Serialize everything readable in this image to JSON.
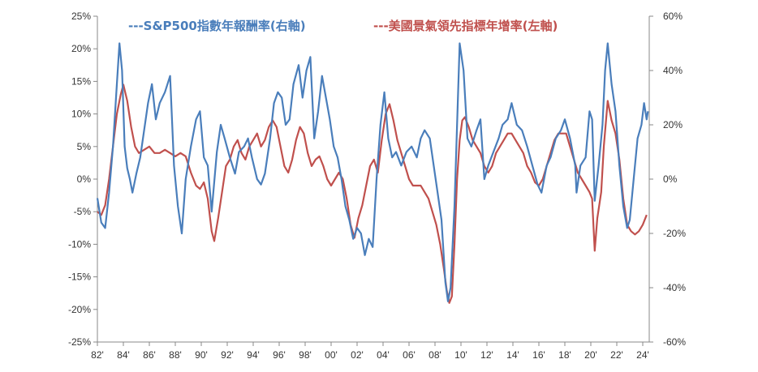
{
  "chart_data": {
    "type": "line",
    "title": "",
    "grid": false,
    "legend_position": "top",
    "x_tick_labels": [
      "82'",
      "84'",
      "86'",
      "88'",
      "90'",
      "92'",
      "94'",
      "96'",
      "98'",
      "00'",
      "02'",
      "04'",
      "06'",
      "08'",
      "10'",
      "12'",
      "14'",
      "16'",
      "18'",
      "20'",
      "22'",
      "24'"
    ],
    "x_tick_years": [
      1982,
      1984,
      1986,
      1988,
      1990,
      1992,
      1994,
      1996,
      1998,
      2000,
      2002,
      2004,
      2006,
      2008,
      2010,
      2012,
      2014,
      2016,
      2018,
      2020,
      2022,
      2024
    ],
    "xlim": [
      1982,
      2024.5
    ],
    "y_left": {
      "ylim": [
        -25,
        25
      ],
      "ticks": [
        "25%",
        "20%",
        "15%",
        "10%",
        "5%",
        "0%",
        "-5%",
        "-10%",
        "-15%",
        "-20%",
        "-25%"
      ],
      "tick_values": [
        25,
        20,
        15,
        10,
        5,
        0,
        -5,
        -10,
        -15,
        -20,
        -25
      ]
    },
    "y_right": {
      "ylim": [
        -60,
        60
      ],
      "ticks": [
        "60%",
        "40%",
        "20%",
        "0%",
        "-20%",
        "-40%",
        "-60%"
      ],
      "tick_values": [
        60,
        40,
        20,
        0,
        -20,
        -40,
        -60
      ]
    },
    "series": [
      {
        "name": "---S&P500指數年報酬率(右軸)",
        "color": "#4a7ebb",
        "axis": "right",
        "points": [
          [
            1982.0,
            -7
          ],
          [
            1982.3,
            -16
          ],
          [
            1982.6,
            -18
          ],
          [
            1982.9,
            -5
          ],
          [
            1983.2,
            12
          ],
          [
            1983.5,
            35
          ],
          [
            1983.7,
            50
          ],
          [
            1983.9,
            40
          ],
          [
            1984.1,
            12
          ],
          [
            1984.3,
            4
          ],
          [
            1984.5,
            0
          ],
          [
            1984.7,
            -5
          ],
          [
            1985.0,
            2
          ],
          [
            1985.3,
            8
          ],
          [
            1985.6,
            18
          ],
          [
            1985.9,
            28
          ],
          [
            1986.2,
            35
          ],
          [
            1986.5,
            22
          ],
          [
            1986.8,
            28
          ],
          [
            1987.2,
            32
          ],
          [
            1987.6,
            38
          ],
          [
            1987.9,
            5
          ],
          [
            1988.2,
            -10
          ],
          [
            1988.5,
            -20
          ],
          [
            1988.8,
            0
          ],
          [
            1989.2,
            12
          ],
          [
            1989.6,
            22
          ],
          [
            1989.9,
            25
          ],
          [
            1990.2,
            8
          ],
          [
            1990.5,
            5
          ],
          [
            1990.8,
            -12
          ],
          [
            1991.2,
            10
          ],
          [
            1991.5,
            20
          ],
          [
            1991.8,
            15
          ],
          [
            1992.2,
            8
          ],
          [
            1992.6,
            2
          ],
          [
            1992.9,
            10
          ],
          [
            1993.3,
            12
          ],
          [
            1993.6,
            15
          ],
          [
            1993.9,
            8
          ],
          [
            1994.3,
            0
          ],
          [
            1994.6,
            -2
          ],
          [
            1994.9,
            2
          ],
          [
            1995.3,
            15
          ],
          [
            1995.6,
            28
          ],
          [
            1995.9,
            32
          ],
          [
            1996.2,
            30
          ],
          [
            1996.5,
            20
          ],
          [
            1996.8,
            22
          ],
          [
            1997.1,
            35
          ],
          [
            1997.5,
            42
          ],
          [
            1997.8,
            30
          ],
          [
            1998.1,
            40
          ],
          [
            1998.4,
            45
          ],
          [
            1998.7,
            15
          ],
          [
            1999.0,
            25
          ],
          [
            1999.3,
            38
          ],
          [
            1999.6,
            30
          ],
          [
            1999.9,
            22
          ],
          [
            2000.2,
            12
          ],
          [
            2000.5,
            8
          ],
          [
            2000.8,
            0
          ],
          [
            2001.1,
            -10
          ],
          [
            2001.4,
            -15
          ],
          [
            2001.7,
            -22
          ],
          [
            2002.0,
            -18
          ],
          [
            2002.3,
            -20
          ],
          [
            2002.6,
            -28
          ],
          [
            2002.9,
            -22
          ],
          [
            2003.2,
            -25
          ],
          [
            2003.5,
            0
          ],
          [
            2003.8,
            20
          ],
          [
            2004.1,
            32
          ],
          [
            2004.4,
            15
          ],
          [
            2004.7,
            8
          ],
          [
            2005.0,
            10
          ],
          [
            2005.4,
            5
          ],
          [
            2005.8,
            10
          ],
          [
            2006.2,
            12
          ],
          [
            2006.6,
            8
          ],
          [
            2006.9,
            15
          ],
          [
            2007.2,
            18
          ],
          [
            2007.6,
            15
          ],
          [
            2007.9,
            5
          ],
          [
            2008.2,
            -5
          ],
          [
            2008.5,
            -15
          ],
          [
            2008.8,
            -38
          ],
          [
            2009.0,
            -45
          ],
          [
            2009.2,
            -40
          ],
          [
            2009.5,
            -10
          ],
          [
            2009.7,
            20
          ],
          [
            2009.9,
            50
          ],
          [
            2010.2,
            40
          ],
          [
            2010.5,
            15
          ],
          [
            2010.8,
            12
          ],
          [
            2011.2,
            18
          ],
          [
            2011.5,
            22
          ],
          [
            2011.8,
            0
          ],
          [
            2012.1,
            5
          ],
          [
            2012.5,
            10
          ],
          [
            2012.9,
            15
          ],
          [
            2013.2,
            20
          ],
          [
            2013.6,
            22
          ],
          [
            2013.9,
            28
          ],
          [
            2014.3,
            20
          ],
          [
            2014.7,
            18
          ],
          [
            2015.1,
            12
          ],
          [
            2015.5,
            5
          ],
          [
            2015.9,
            -2
          ],
          [
            2016.2,
            -5
          ],
          [
            2016.6,
            5
          ],
          [
            2016.9,
            8
          ],
          [
            2017.3,
            15
          ],
          [
            2017.7,
            18
          ],
          [
            2018.0,
            22
          ],
          [
            2018.4,
            15
          ],
          [
            2018.8,
            5
          ],
          [
            2018.9,
            -5
          ],
          [
            2019.2,
            5
          ],
          [
            2019.6,
            8
          ],
          [
            2019.9,
            25
          ],
          [
            2020.1,
            22
          ],
          [
            2020.3,
            -8
          ],
          [
            2020.6,
            5
          ],
          [
            2020.9,
            20
          ],
          [
            2021.1,
            40
          ],
          [
            2021.3,
            50
          ],
          [
            2021.6,
            35
          ],
          [
            2021.9,
            25
          ],
          [
            2022.2,
            5
          ],
          [
            2022.5,
            -10
          ],
          [
            2022.8,
            -18
          ],
          [
            2023.0,
            -15
          ],
          [
            2023.3,
            0
          ],
          [
            2023.6,
            15
          ],
          [
            2023.9,
            20
          ],
          [
            2024.1,
            28
          ],
          [
            2024.3,
            22
          ],
          [
            2024.4,
            25
          ]
        ]
      },
      {
        "name": "---美國景氣領先指標年增率(左軸)",
        "color": "#c0504d",
        "axis": "left",
        "points": [
          [
            1982.0,
            -5
          ],
          [
            1982.3,
            -5.5
          ],
          [
            1982.6,
            -4
          ],
          [
            1982.9,
            0
          ],
          [
            1983.2,
            5
          ],
          [
            1983.5,
            10
          ],
          [
            1983.8,
            13
          ],
          [
            1984.0,
            14.5
          ],
          [
            1984.3,
            12
          ],
          [
            1984.6,
            8
          ],
          [
            1984.9,
            5
          ],
          [
            1985.2,
            4
          ],
          [
            1985.6,
            4.5
          ],
          [
            1986.0,
            5
          ],
          [
            1986.4,
            4
          ],
          [
            1986.8,
            4
          ],
          [
            1987.2,
            4.5
          ],
          [
            1987.6,
            4
          ],
          [
            1988.0,
            3.5
          ],
          [
            1988.4,
            4
          ],
          [
            1988.8,
            3.5
          ],
          [
            1989.2,
            1
          ],
          [
            1989.6,
            -1
          ],
          [
            1989.9,
            -1.5
          ],
          [
            1990.2,
            -0.5
          ],
          [
            1990.5,
            -3
          ],
          [
            1990.8,
            -8
          ],
          [
            1991.0,
            -9.5
          ],
          [
            1991.3,
            -6
          ],
          [
            1991.6,
            -2
          ],
          [
            1991.9,
            2
          ],
          [
            1992.2,
            3
          ],
          [
            1992.5,
            5
          ],
          [
            1992.8,
            6
          ],
          [
            1993.1,
            4
          ],
          [
            1993.4,
            3
          ],
          [
            1993.7,
            5
          ],
          [
            1994.0,
            6
          ],
          [
            1994.3,
            7
          ],
          [
            1994.6,
            5
          ],
          [
            1994.9,
            6
          ],
          [
            1995.2,
            8
          ],
          [
            1995.5,
            9
          ],
          [
            1995.8,
            8
          ],
          [
            1996.1,
            5
          ],
          [
            1996.4,
            2
          ],
          [
            1996.7,
            1
          ],
          [
            1997.0,
            3
          ],
          [
            1997.3,
            6
          ],
          [
            1997.6,
            8
          ],
          [
            1997.9,
            7
          ],
          [
            1998.2,
            4
          ],
          [
            1998.5,
            2
          ],
          [
            1998.8,
            3
          ],
          [
            1999.1,
            3.5
          ],
          [
            1999.4,
            2
          ],
          [
            1999.7,
            0
          ],
          [
            2000.0,
            -1
          ],
          [
            2000.3,
            0
          ],
          [
            2000.6,
            1
          ],
          [
            2000.9,
            0
          ],
          [
            2001.2,
            -3
          ],
          [
            2001.5,
            -7
          ],
          [
            2001.8,
            -9
          ],
          [
            2002.1,
            -6
          ],
          [
            2002.4,
            -4
          ],
          [
            2002.7,
            -1
          ],
          [
            2003.0,
            2
          ],
          [
            2003.3,
            3
          ],
          [
            2003.6,
            1
          ],
          [
            2003.9,
            6
          ],
          [
            2004.2,
            10
          ],
          [
            2004.5,
            11.5
          ],
          [
            2004.8,
            9
          ],
          [
            2005.1,
            6
          ],
          [
            2005.4,
            4
          ],
          [
            2005.7,
            2
          ],
          [
            2006.0,
            0
          ],
          [
            2006.3,
            -1
          ],
          [
            2006.6,
            -1
          ],
          [
            2006.9,
            -1
          ],
          [
            2007.2,
            -2
          ],
          [
            2007.5,
            -3
          ],
          [
            2007.8,
            -5
          ],
          [
            2008.1,
            -7
          ],
          [
            2008.4,
            -10
          ],
          [
            2008.7,
            -14
          ],
          [
            2008.9,
            -17
          ],
          [
            2009.1,
            -19
          ],
          [
            2009.3,
            -18
          ],
          [
            2009.5,
            -10
          ],
          [
            2009.7,
            0
          ],
          [
            2009.9,
            6
          ],
          [
            2010.1,
            9
          ],
          [
            2010.3,
            9.5
          ],
          [
            2010.6,
            8
          ],
          [
            2010.9,
            6
          ],
          [
            2011.2,
            5
          ],
          [
            2011.5,
            4
          ],
          [
            2011.8,
            2
          ],
          [
            2012.1,
            1
          ],
          [
            2012.4,
            2
          ],
          [
            2012.7,
            4
          ],
          [
            2013.0,
            5
          ],
          [
            2013.3,
            6
          ],
          [
            2013.6,
            7
          ],
          [
            2013.9,
            7
          ],
          [
            2014.2,
            6
          ],
          [
            2014.5,
            5
          ],
          [
            2014.8,
            4
          ],
          [
            2015.1,
            2
          ],
          [
            2015.4,
            1
          ],
          [
            2015.7,
            -0.5
          ],
          [
            2016.0,
            -1
          ],
          [
            2016.3,
            0
          ],
          [
            2016.6,
            2
          ],
          [
            2016.9,
            4
          ],
          [
            2017.2,
            6
          ],
          [
            2017.5,
            7
          ],
          [
            2017.8,
            7
          ],
          [
            2018.1,
            7
          ],
          [
            2018.4,
            5
          ],
          [
            2018.7,
            3
          ],
          [
            2019.0,
            1
          ],
          [
            2019.3,
            0
          ],
          [
            2019.6,
            -1
          ],
          [
            2019.9,
            -2
          ],
          [
            2020.1,
            -3
          ],
          [
            2020.3,
            -11
          ],
          [
            2020.5,
            -6
          ],
          [
            2020.8,
            -2
          ],
          [
            2021.0,
            5
          ],
          [
            2021.3,
            12
          ],
          [
            2021.6,
            9
          ],
          [
            2021.9,
            7
          ],
          [
            2022.2,
            3
          ],
          [
            2022.5,
            -3
          ],
          [
            2022.8,
            -7
          ],
          [
            2023.1,
            -8
          ],
          [
            2023.4,
            -8.5
          ],
          [
            2023.7,
            -8
          ],
          [
            2024.0,
            -7
          ],
          [
            2024.3,
            -5.5
          ]
        ]
      }
    ]
  }
}
